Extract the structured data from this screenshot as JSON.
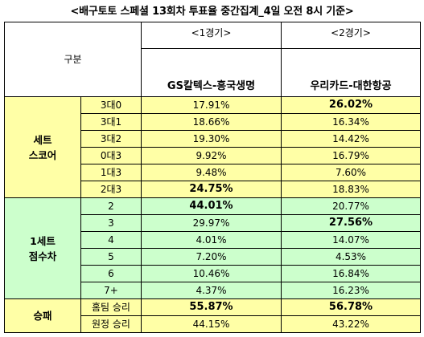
{
  "title": "<배구토토 스페셜 13회차 투표율 중간집계_4일 오전 8시 기준>",
  "header": {
    "gubun": "구분",
    "game1_no": "<1경기>",
    "game2_no": "<2경기>",
    "game1_match": "GS칼텍스-흥국생명",
    "game2_match": "우리카드-대한항공"
  },
  "groups": {
    "set_score": [
      "세트",
      "스코어"
    ],
    "set_diff": [
      "1세트",
      "점수차"
    ],
    "result": "승패"
  },
  "rows": [
    {
      "label": "3대0",
      "g1": "17.91%",
      "g2": "26.02%",
      "g1_bold": false,
      "g2_bold": true
    },
    {
      "label": "3대1",
      "g1": "18.66%",
      "g2": "16.34%",
      "g1_bold": false,
      "g2_bold": false
    },
    {
      "label": "3대2",
      "g1": "19.30%",
      "g2": "14.42%",
      "g1_bold": false,
      "g2_bold": false
    },
    {
      "label": "0대3",
      "g1": "9.92%",
      "g2": "16.79%",
      "g1_bold": false,
      "g2_bold": false
    },
    {
      "label": "1대3",
      "g1": "9.48%",
      "g2": "7.60%",
      "g1_bold": false,
      "g2_bold": false
    },
    {
      "label": "2대3",
      "g1": "24.75%",
      "g2": "18.83%",
      "g1_bold": true,
      "g2_bold": false
    },
    {
      "label": "2",
      "g1": "44.01%",
      "g2": "20.77%",
      "g1_bold": true,
      "g2_bold": false
    },
    {
      "label": "3",
      "g1": "29.97%",
      "g2": "27.56%",
      "g1_bold": false,
      "g2_bold": true
    },
    {
      "label": "4",
      "g1": "4.01%",
      "g2": "14.07%",
      "g1_bold": false,
      "g2_bold": false
    },
    {
      "label": "5",
      "g1": "7.20%",
      "g2": "4.53%",
      "g1_bold": false,
      "g2_bold": false
    },
    {
      "label": "6",
      "g1": "10.46%",
      "g2": "16.84%",
      "g1_bold": false,
      "g2_bold": false
    },
    {
      "label": "7+",
      "g1": "4.37%",
      "g2": "16.23%",
      "g1_bold": false,
      "g2_bold": false
    },
    {
      "label": "홈팀 승리",
      "g1": "55.87%",
      "g2": "56.78%",
      "g1_bold": true,
      "g2_bold": true
    },
    {
      "label": "원정 승리",
      "g1": "44.15%",
      "g2": "43.22%",
      "g1_bold": false,
      "g2_bold": false
    }
  ],
  "colors": {
    "set_score_bg": "#ffffa6",
    "set_diff_bg": "#ccffcc",
    "result_bg": "#ffffa6"
  }
}
